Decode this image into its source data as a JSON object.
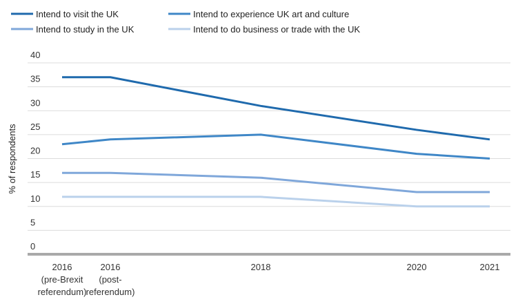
{
  "chart_data": {
    "type": "line",
    "y_label": "% of respondents",
    "categories": [
      [
        "2016",
        "(pre-Brexit",
        "referendum)"
      ],
      [
        "2016",
        "(post-",
        "referendum)"
      ],
      [
        "2018"
      ],
      [
        "2020"
      ],
      [
        "2021"
      ]
    ],
    "series": [
      {
        "name": "Intend to visit the UK",
        "color": "#1f6aad",
        "values": [
          37,
          37,
          31,
          26,
          24
        ]
      },
      {
        "name": "Intend to experience UK art and culture",
        "color": "#3f87c7",
        "values": [
          23,
          24,
          25,
          21,
          20
        ]
      },
      {
        "name": "Intend to study in the UK",
        "color": "#7fa7da",
        "values": [
          17,
          17,
          16,
          13,
          13
        ]
      },
      {
        "name": "Intend to do business or trade with the UK",
        "color": "#bad1eb",
        "values": [
          12,
          12,
          12,
          10,
          10
        ]
      }
    ],
    "ylim": [
      0,
      40
    ],
    "yticks": [
      0,
      5,
      10,
      15,
      20,
      25,
      30,
      35,
      40
    ],
    "grid": true
  }
}
